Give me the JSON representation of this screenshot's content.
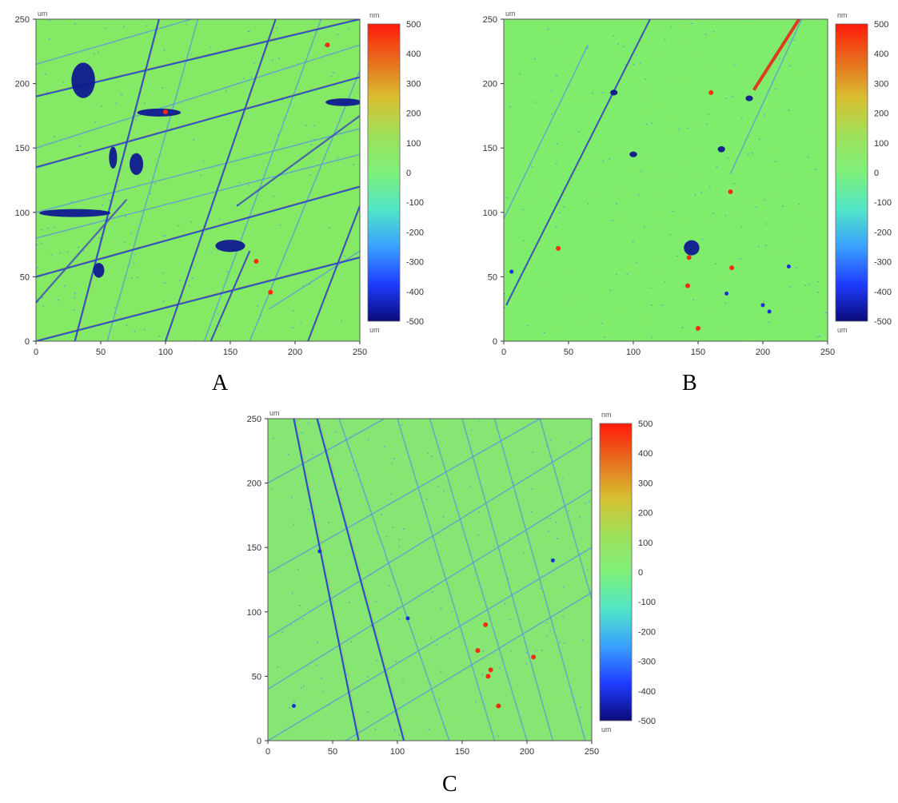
{
  "figure_labels": [
    "A",
    "B",
    "C"
  ],
  "chart_data": [
    {
      "type": "heatmap",
      "panel_label": "A",
      "x_unit": "um",
      "y_unit": "um",
      "xlim": [
        0,
        250
      ],
      "ylim": [
        0,
        250
      ],
      "x_ticks": [
        0,
        50,
        100,
        150,
        200,
        250
      ],
      "y_ticks": [
        0,
        50,
        100,
        150,
        200,
        250
      ],
      "colorbar": {
        "unit": "nm",
        "range": [
          -500,
          500
        ],
        "ticks": [
          "500",
          "400",
          "300",
          "200",
          "100",
          "0",
          "-100",
          "-200",
          "-300",
          "-400",
          "-500"
        ],
        "bottom_unit": "um",
        "colors": [
          "#0a0a7a",
          "#1f3cff",
          "#3aa0ff",
          "#50e6c8",
          "#7ef07a",
          "#9ee05a",
          "#d8c030",
          "#e86e1e",
          "#ff1a0a"
        ]
      },
      "background_color": "#84ea66",
      "features": {
        "scratches_dark": [
          [
            [
              0,
              190
            ],
            [
              250,
              250
            ]
          ],
          [
            [
              0,
              135
            ],
            [
              250,
              205
            ]
          ],
          [
            [
              0,
              50
            ],
            [
              250,
              120
            ]
          ],
          [
            [
              0,
              0
            ],
            [
              250,
              65
            ]
          ],
          [
            [
              100,
              0
            ],
            [
              185,
              250
            ]
          ],
          [
            [
              30,
              0
            ],
            [
              95,
              250
            ]
          ],
          [
            [
              135,
              0
            ],
            [
              165,
              70
            ]
          ],
          [
            [
              0,
              30
            ],
            [
              70,
              110
            ]
          ],
          [
            [
              155,
              105
            ],
            [
              250,
              175
            ]
          ],
          [
            [
              210,
              0
            ],
            [
              250,
              105
            ]
          ]
        ],
        "scratches_light": [
          [
            [
              0,
              100
            ],
            [
              250,
              165
            ]
          ],
          [
            [
              0,
              150
            ],
            [
              250,
              230
            ]
          ],
          [
            [
              0,
              215
            ],
            [
              120,
              250
            ]
          ],
          [
            [
              55,
              0
            ],
            [
              125,
              250
            ]
          ],
          [
            [
              130,
              0
            ],
            [
              220,
              250
            ]
          ],
          [
            [
              165,
              0
            ],
            [
              250,
              210
            ]
          ],
          [
            [
              0,
              80
            ],
            [
              250,
              145
            ]
          ],
          [
            [
              180,
              25
            ],
            [
              250,
              70
            ]
          ]
        ],
        "blobs_dark": [
          [
            [
              5,
              97
            ],
            [
              55,
              102
            ],
            [
              20,
              5
            ]
          ],
          [
            [
              80,
              175
            ],
            [
              110,
              180
            ],
            [
              15,
              5
            ]
          ],
          [
            [
              225,
              183
            ],
            [
              250,
              188
            ],
            [
              12,
              4
            ]
          ],
          [
            [
              57,
              135
            ],
            [
              62,
              150
            ],
            [
              5,
              8
            ]
          ],
          [
            [
              73,
              130
            ],
            [
              82,
              145
            ],
            [
              6,
              8
            ]
          ],
          [
            [
              140,
              78
            ],
            [
              160,
              70
            ],
            [
              12,
              6
            ]
          ],
          [
            [
              28,
              190
            ],
            [
              45,
              215
            ],
            [
              5,
              10
            ]
          ],
          [
            [
              45,
              50
            ],
            [
              52,
              60
            ],
            [
              6,
              6
            ]
          ]
        ],
        "spots_red": [
          [
            [
              170,
              62
            ]
          ],
          [
            [
              100,
              178
            ]
          ],
          [
            [
              225,
              230
            ]
          ],
          [
            [
              181,
              38
            ]
          ]
        ]
      }
    },
    {
      "type": "heatmap",
      "panel_label": "B",
      "x_unit": "um",
      "y_unit": "um",
      "xlim": [
        0,
        250
      ],
      "ylim": [
        0,
        250
      ],
      "x_ticks": [
        0,
        50,
        100,
        150,
        200,
        250
      ],
      "y_ticks": [
        0,
        50,
        100,
        150,
        200,
        250
      ],
      "colorbar": {
        "unit": "nm",
        "range": [
          -500,
          500
        ],
        "ticks": [
          "500",
          "400",
          "300",
          "200",
          "100",
          "0",
          "-100",
          "-200",
          "-300",
          "-400",
          "-500"
        ],
        "bottom_unit": "um",
        "colors": [
          "#0a0a7a",
          "#1f3cff",
          "#3aa0ff",
          "#50e6c8",
          "#7ef07a",
          "#9ee05a",
          "#d8c030",
          "#e86e1e",
          "#ff1a0a"
        ]
      },
      "background_color": "#7fec6c",
      "features": {
        "scratches_dark": [
          [
            [
              2,
              28
            ],
            [
              113,
              250
            ]
          ]
        ],
        "scratches_light": [
          [
            [
              0,
              95
            ],
            [
              65,
              230
            ]
          ],
          [
            [
              175,
              130
            ],
            [
              230,
              250
            ]
          ]
        ],
        "scratches_red": [
          [
            [
              193,
              195
            ],
            [
              228,
              250
            ]
          ]
        ],
        "blobs_dark": [
          [
            [
              98,
              145
            ],
            [
              102,
              145
            ],
            [
              4,
              3
            ]
          ],
          [
            [
              167,
              150
            ],
            [
              169,
              148
            ],
            [
              3,
              4
            ]
          ],
          [
            [
              140,
              67
            ],
            [
              150,
              78
            ],
            [
              8,
              3
            ]
          ],
          [
            [
              84,
              192
            ],
            [
              86,
              194
            ],
            [
              3,
              3
            ]
          ],
          [
            [
              189,
              188
            ],
            [
              190,
              189
            ],
            [
              3,
              3
            ]
          ]
        ],
        "spots_red": [
          [
            [
              42,
              72
            ]
          ],
          [
            [
              143,
              65
            ]
          ],
          [
            [
              176,
              57
            ]
          ],
          [
            [
              142,
              43
            ]
          ],
          [
            [
              150,
              10
            ]
          ],
          [
            [
              175,
              116
            ]
          ],
          [
            [
              160,
              193
            ]
          ]
        ],
        "spots_blue": [
          [
            [
              6,
              54
            ]
          ],
          [
            [
              172,
              37
            ]
          ],
          [
            [
              200,
              28
            ]
          ],
          [
            [
              205,
              23
            ]
          ],
          [
            [
              220,
              58
            ]
          ]
        ]
      }
    },
    {
      "type": "heatmap",
      "panel_label": "C",
      "x_unit": "um",
      "y_unit": "um",
      "xlim": [
        0,
        250
      ],
      "ylim": [
        0,
        250
      ],
      "x_ticks": [
        0,
        50,
        100,
        150,
        200,
        250
      ],
      "y_ticks": [
        0,
        50,
        100,
        150,
        200,
        250
      ],
      "colorbar": {
        "unit": "nm",
        "range": [
          -500,
          500
        ],
        "ticks": [
          "500",
          "400",
          "300",
          "200",
          "100",
          "0",
          "-100",
          "-200",
          "-300",
          "-400",
          "-500"
        ],
        "bottom_unit": "um",
        "colors": [
          "#0a0a7a",
          "#1f3cff",
          "#3aa0ff",
          "#50e6c8",
          "#7ef07a",
          "#9ee05a",
          "#d8c030",
          "#e86e1e",
          "#ff1a0a"
        ]
      },
      "background_color": "#86e673",
      "features": {
        "scratches_light": [
          [
            [
              20,
              250
            ],
            [
              70,
              0
            ]
          ],
          [
            [
              38,
              250
            ],
            [
              105,
              0
            ]
          ],
          [
            [
              55,
              250
            ],
            [
              140,
              0
            ]
          ],
          [
            [
              100,
              250
            ],
            [
              175,
              0
            ]
          ],
          [
            [
              125,
              250
            ],
            [
              200,
              0
            ]
          ],
          [
            [
              175,
              250
            ],
            [
              245,
              0
            ]
          ],
          [
            [
              0,
              130
            ],
            [
              210,
              250
            ]
          ],
          [
            [
              0,
              40
            ],
            [
              250,
              195
            ]
          ],
          [
            [
              0,
              0
            ],
            [
              250,
              150
            ]
          ],
          [
            [
              60,
              0
            ],
            [
              250,
              115
            ]
          ],
          [
            [
              0,
              200
            ],
            [
              90,
              250
            ]
          ],
          [
            [
              150,
              250
            ],
            [
              220,
              0
            ]
          ],
          [
            [
              210,
              250
            ],
            [
              250,
              110
            ]
          ],
          [
            [
              0,
              80
            ],
            [
              250,
              235
            ]
          ]
        ],
        "scratches_dark": [
          [
            [
              20,
              250
            ],
            [
              70,
              0
            ]
          ],
          [
            [
              38,
              250
            ],
            [
              105,
              0
            ]
          ]
        ],
        "spots_red": [
          [
            [
              170,
              50
            ]
          ],
          [
            [
              178,
              27
            ]
          ],
          [
            [
              168,
              90
            ]
          ],
          [
            [
              172,
              55
            ]
          ],
          [
            [
              205,
              65
            ]
          ],
          [
            [
              162,
              70
            ]
          ]
        ],
        "spots_blue": [
          [
            [
              40,
              147
            ]
          ],
          [
            [
              20,
              27
            ]
          ],
          [
            [
              108,
              95
            ]
          ],
          [
            [
              220,
              140
            ]
          ]
        ]
      }
    }
  ]
}
